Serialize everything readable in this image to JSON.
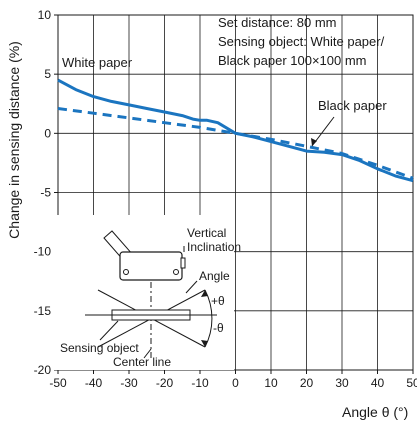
{
  "chart_data": {
    "type": "line",
    "title": "",
    "xlabel": "Angle θ (°)",
    "ylabel": "Change in sensing distance (%)",
    "xlim": [
      -50,
      50
    ],
    "ylim": [
      -20,
      10
    ],
    "xticks": [
      -50,
      -40,
      -30,
      -20,
      -10,
      0,
      10,
      20,
      30,
      40,
      50
    ],
    "yticks": [
      -20,
      -15,
      -10,
      -5,
      0,
      5,
      10
    ],
    "grid": true,
    "series": [
      {
        "name": "White paper",
        "style": "solid",
        "color": "#1b75c0",
        "x": [
          -50,
          -45,
          -40,
          -35,
          -30,
          -25,
          -20,
          -15,
          -12,
          -10,
          -8,
          -5,
          0,
          5,
          10,
          15,
          20,
          25,
          30,
          35,
          40,
          45,
          50
        ],
        "y": [
          4.5,
          3.7,
          3.1,
          2.7,
          2.4,
          2.1,
          1.8,
          1.5,
          1.2,
          1.1,
          1.1,
          0.9,
          0.0,
          -0.3,
          -0.7,
          -1.1,
          -1.5,
          -1.6,
          -1.8,
          -2.3,
          -3.0,
          -3.6,
          -4.0
        ]
      },
      {
        "name": "Black paper",
        "style": "dashed",
        "color": "#1b75c0",
        "x": [
          -50,
          -40,
          -30,
          -20,
          -10,
          0,
          10,
          20,
          30,
          40,
          50
        ],
        "y": [
          2.1,
          1.7,
          1.3,
          0.9,
          0.5,
          0.0,
          -0.5,
          -1.1,
          -1.7,
          -2.7,
          -3.8
        ]
      }
    ],
    "annotation": {
      "line1": "Set distance: 80 mm",
      "line2": "Sensing object: White paper/",
      "line3": "Black paper 100×100 mm"
    },
    "inset_labels": {
      "vertical": "Vertical",
      "inclination": "Inclination",
      "angle": "Angle",
      "plus_theta": "+θ",
      "minus_theta": "-θ",
      "sensing_object": "Sensing object",
      "center_line": "Center line"
    }
  }
}
